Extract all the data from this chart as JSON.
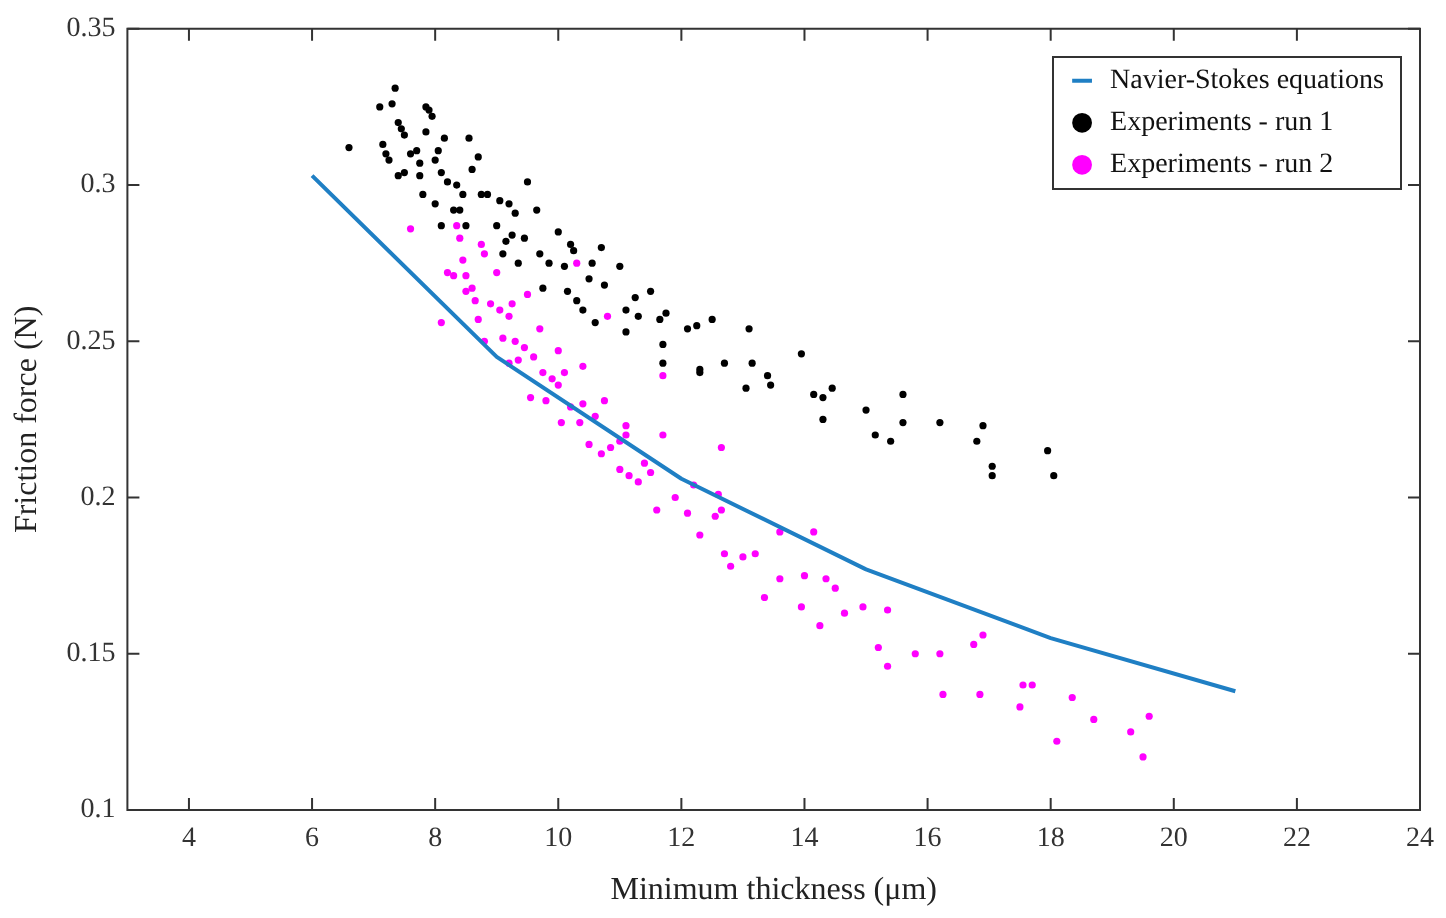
{
  "chart_data": {
    "type": "scatter",
    "xlabel": "Minimum thickness (μm)",
    "ylabel": "Friction force (N)",
    "xlim": [
      3,
      24
    ],
    "ylim": [
      0.1,
      0.35
    ],
    "xticks": [
      4,
      6,
      8,
      10,
      12,
      14,
      16,
      18,
      20,
      22,
      24
    ],
    "yticks": [
      0.1,
      0.15,
      0.2,
      0.25,
      0.3,
      0.35
    ],
    "grid": false,
    "legend": "top right",
    "series": [
      {
        "name": "Navier-Stokes equations",
        "type": "line",
        "color": "#1f7fc4",
        "marker": "none",
        "line_style": "solid",
        "x": [
          6,
          9,
          12,
          15,
          18,
          21
        ],
        "values": [
          0.303,
          0.245,
          0.206,
          0.177,
          0.155,
          0.138
        ]
      },
      {
        "name": "Experiments - run 1",
        "type": "scatter",
        "color": "#000000",
        "marker": "circle",
        "x": [
          6.6,
          7.1,
          7.15,
          7.2,
          7.25,
          7.3,
          7.35,
          7.4,
          7.4,
          7.45,
          7.5,
          7.5,
          7.6,
          7.7,
          7.75,
          7.75,
          7.8,
          7.85,
          7.85,
          7.9,
          7.95,
          8.0,
          8.0,
          8.05,
          8.1,
          8.1,
          8.15,
          8.2,
          8.3,
          8.35,
          8.4,
          8.45,
          8.5,
          8.55,
          8.6,
          8.7,
          8.75,
          8.85,
          9.0,
          9.05,
          9.1,
          9.15,
          9.2,
          9.25,
          9.3,
          9.35,
          9.45,
          9.5,
          9.65,
          9.7,
          9.75,
          9.85,
          10.0,
          10.1,
          10.15,
          10.2,
          10.25,
          10.3,
          10.4,
          10.5,
          10.55,
          10.6,
          10.7,
          10.75,
          11.0,
          11.1,
          11.1,
          11.25,
          11.3,
          11.5,
          11.65,
          11.7,
          11.7,
          11.75,
          12.1,
          12.25,
          12.3,
          12.3,
          12.5,
          12.7,
          13.05,
          13.1,
          13.15,
          13.4,
          13.45,
          13.95,
          14.15,
          14.3,
          14.3,
          14.45,
          15.0,
          15.15,
          15.4,
          15.6,
          15.6,
          16.2,
          16.8,
          16.9,
          17.05,
          17.05,
          17.95,
          18.05
        ],
        "values": [
          0.312,
          0.325,
          0.313,
          0.31,
          0.308,
          0.326,
          0.331,
          0.32,
          0.303,
          0.318,
          0.316,
          0.304,
          0.31,
          0.311,
          0.307,
          0.303,
          0.297,
          0.325,
          0.317,
          0.324,
          0.322,
          0.294,
          0.308,
          0.311,
          0.304,
          0.287,
          0.315,
          0.301,
          0.292,
          0.3,
          0.292,
          0.297,
          0.287,
          0.315,
          0.305,
          0.309,
          0.297,
          0.297,
          0.287,
          0.295,
          0.278,
          0.282,
          0.294,
          0.284,
          0.291,
          0.275,
          0.283,
          0.301,
          0.292,
          0.278,
          0.267,
          0.275,
          0.285,
          0.274,
          0.266,
          0.281,
          0.279,
          0.263,
          0.26,
          0.27,
          0.275,
          0.256,
          0.28,
          0.268,
          0.274,
          0.26,
          0.253,
          0.264,
          0.258,
          0.266,
          0.257,
          0.249,
          0.243,
          0.259,
          0.254,
          0.255,
          0.241,
          0.24,
          0.257,
          0.243,
          0.235,
          0.254,
          0.243,
          0.239,
          0.236,
          0.246,
          0.233,
          0.232,
          0.225,
          0.235,
          0.228,
          0.22,
          0.218,
          0.233,
          0.224,
          0.224,
          0.218,
          0.223,
          0.21,
          0.207,
          0.215,
          0.207
        ]
      },
      {
        "name": "Experiments - run 2",
        "type": "scatter",
        "color": "#ff00ff",
        "marker": "circle",
        "x": [
          7.6,
          8.1,
          8.2,
          8.3,
          8.35,
          8.4,
          8.45,
          8.5,
          8.5,
          8.6,
          8.65,
          8.7,
          8.75,
          8.8,
          8.8,
          8.9,
          9.0,
          9.05,
          9.1,
          9.2,
          9.2,
          9.25,
          9.3,
          9.35,
          9.45,
          9.5,
          9.55,
          9.6,
          9.7,
          9.75,
          9.8,
          9.9,
          10.0,
          10.0,
          10.05,
          10.1,
          10.2,
          10.3,
          10.35,
          10.4,
          10.4,
          10.5,
          10.6,
          10.7,
          10.75,
          10.8,
          10.85,
          11.0,
          11.0,
          11.1,
          11.1,
          11.15,
          11.3,
          11.4,
          11.5,
          11.6,
          11.7,
          11.7,
          11.9,
          12.1,
          12.2,
          12.3,
          12.55,
          12.6,
          12.65,
          12.65,
          12.7,
          12.8,
          13.0,
          13.2,
          13.35,
          13.6,
          13.6,
          13.95,
          14.0,
          14.15,
          14.25,
          14.35,
          14.5,
          14.65,
          14.95,
          15.2,
          15.35,
          15.35,
          15.8,
          16.2,
          16.25,
          16.75,
          16.85,
          16.9,
          17.5,
          17.55,
          17.7,
          18.1,
          18.35,
          18.7,
          19.3,
          19.5,
          19.6
        ],
        "values": [
          0.286,
          0.256,
          0.272,
          0.271,
          0.287,
          0.283,
          0.276,
          0.271,
          0.266,
          0.267,
          0.263,
          0.257,
          0.281,
          0.278,
          0.25,
          0.262,
          0.272,
          0.26,
          0.251,
          0.243,
          0.258,
          0.262,
          0.25,
          0.244,
          0.248,
          0.265,
          0.232,
          0.245,
          0.254,
          0.24,
          0.231,
          0.238,
          0.247,
          0.236,
          0.224,
          0.24,
          0.229,
          0.275,
          0.224,
          0.23,
          0.242,
          0.217,
          0.226,
          0.214,
          0.231,
          0.258,
          0.216,
          0.218,
          0.209,
          0.223,
          0.22,
          0.207,
          0.205,
          0.211,
          0.208,
          0.196,
          0.239,
          0.22,
          0.2,
          0.195,
          0.204,
          0.188,
          0.194,
          0.201,
          0.196,
          0.216,
          0.182,
          0.178,
          0.181,
          0.182,
          0.168,
          0.174,
          0.189,
          0.165,
          0.175,
          0.189,
          0.159,
          0.174,
          0.171,
          0.163,
          0.165,
          0.152,
          0.146,
          0.164,
          0.15,
          0.15,
          0.137,
          0.153,
          0.137,
          0.156,
          0.133,
          0.14,
          0.14,
          0.122,
          0.136,
          0.129,
          0.125,
          0.117,
          0.13
        ]
      }
    ]
  }
}
